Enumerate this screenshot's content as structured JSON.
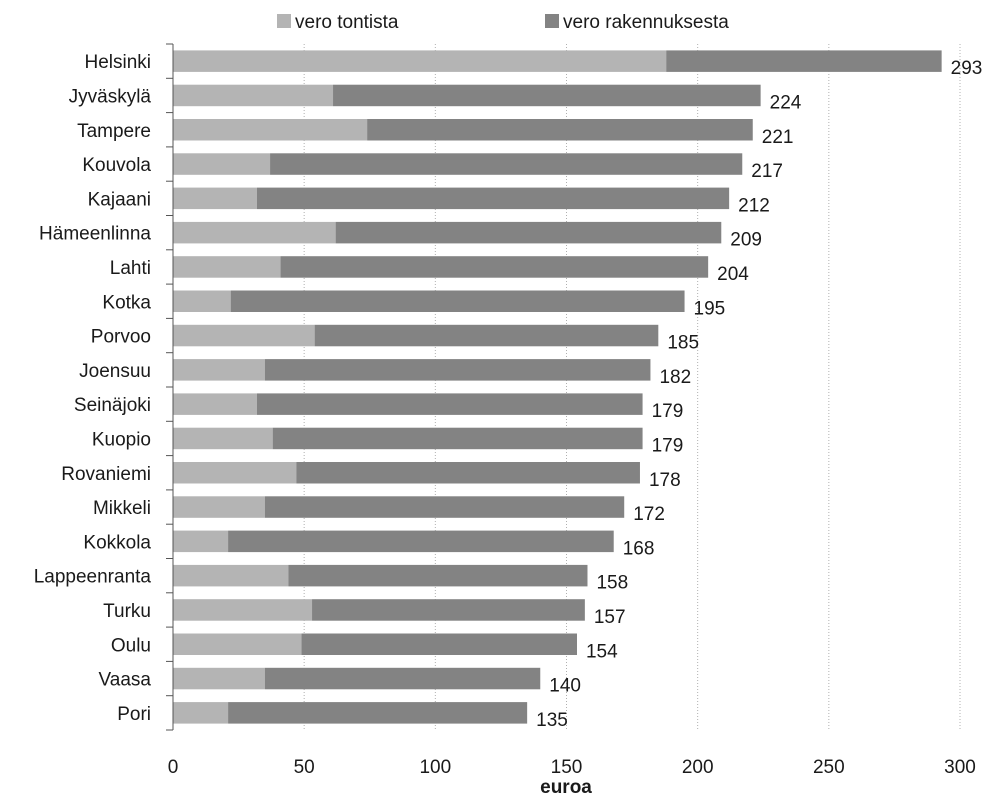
{
  "chart_data": {
    "type": "bar",
    "orientation": "horizontal",
    "stacked": true,
    "title": "",
    "xlabel": "euroa",
    "ylabel": "",
    "xlim": [
      0,
      300
    ],
    "xticks": [
      0,
      50,
      100,
      150,
      200,
      250,
      300
    ],
    "grid": "vertical dotted",
    "legend_position": "top",
    "categories": [
      "Helsinki",
      "Jyväskylä",
      "Tampere",
      "Kouvola",
      "Kajaani",
      "Hämeenlinna",
      "Lahti",
      "Kotka",
      "Porvoo",
      "Joensuu",
      "Seinäjoki",
      "Kuopio",
      "Rovaniemi",
      "Mikkeli",
      "Kokkola",
      "Lappeenranta",
      "Turku",
      "Oulu",
      "Vaasa",
      "Pori"
    ],
    "series": [
      {
        "name": "vero tontista",
        "color": "#b4b4b4",
        "values": [
          188,
          61,
          74,
          37,
          32,
          62,
          41,
          22,
          54,
          35,
          32,
          38,
          47,
          35,
          21,
          44,
          53,
          49,
          35,
          21
        ]
      },
      {
        "name": "vero rakennuksesta",
        "color": "#838383",
        "values": [
          105,
          163,
          147,
          180,
          180,
          147,
          163,
          173,
          131,
          147,
          147,
          141,
          131,
          137,
          147,
          114,
          104,
          105,
          105,
          114
        ]
      }
    ],
    "totals": [
      293,
      224,
      221,
      217,
      212,
      209,
      204,
      195,
      185,
      182,
      179,
      179,
      178,
      172,
      168,
      158,
      157,
      154,
      140,
      135
    ]
  }
}
